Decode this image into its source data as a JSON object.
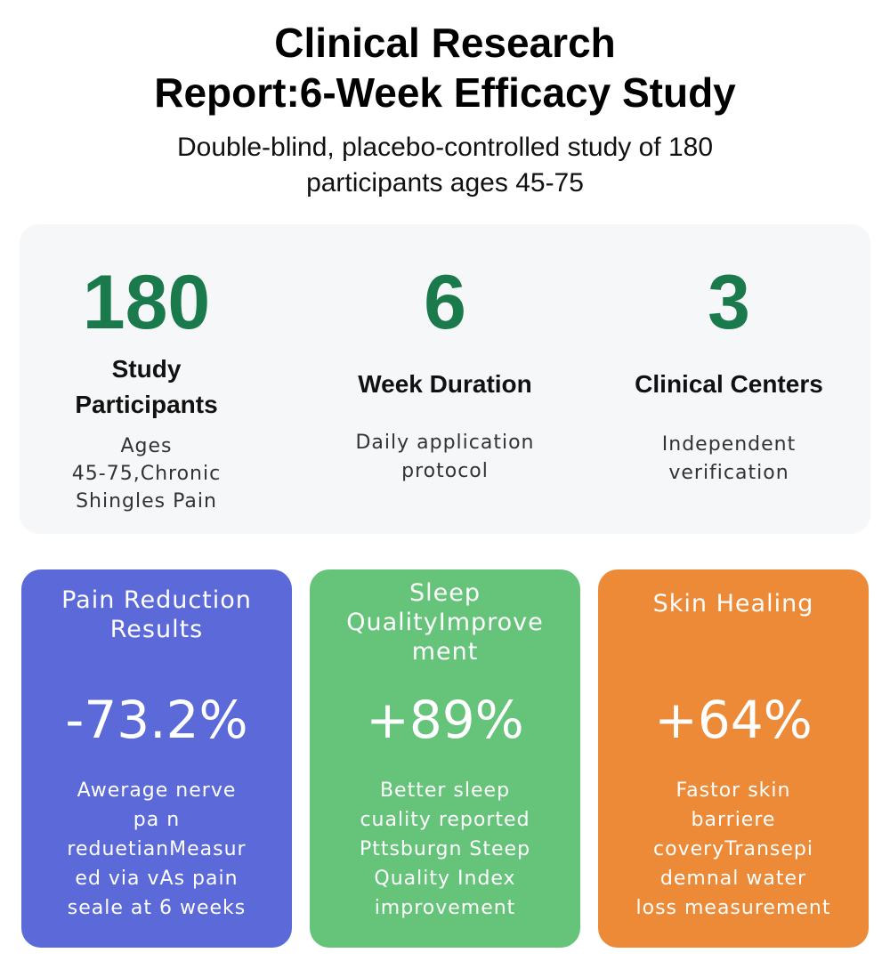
{
  "header": {
    "title_line1": "Clinical Research",
    "title_line2": "Report:6-Week Efficacy Study",
    "subtitle_line1": "Double-blind, placebo-controlled study of 180",
    "subtitle_line2": "participants ages 45-75"
  },
  "stats": [
    {
      "number": "180",
      "label_line1": "Study",
      "label_line2": "Participants",
      "desc_lines": [
        "Ages",
        "45-75,Chronic",
        "Shingles Pain"
      ]
    },
    {
      "number": "6",
      "label_line1": "Week Duration",
      "desc_lines": [
        "Daily application",
        "protocol"
      ]
    },
    {
      "number": "3",
      "label_line1": "Clinical Centers",
      "desc_lines": [
        "Independent",
        "verification"
      ]
    }
  ],
  "cards": [
    {
      "title_lines": [
        "Pain Reduction",
        "Results"
      ],
      "value": "-73.2%",
      "desc_lines": [
        "Awerage nerve",
        "pa n",
        "reduetianMeasur",
        "ed via vAs pain",
        "seale at 6 weeks"
      ],
      "color": "#5b6ad8"
    },
    {
      "title_lines": [
        "Sleep",
        "QualityImprove",
        "ment"
      ],
      "value": "+89%",
      "desc_lines": [
        "Better sleep",
        "cuality reported",
        "Pttsburgn Steep",
        "Quality Index",
        "improvement"
      ],
      "color": "#66c47a"
    },
    {
      "title_lines": [
        "Skin Healing"
      ],
      "value": "+64%",
      "desc_lines": [
        "Fastor skin",
        "barriere",
        "coveryTransepi",
        "demnal water",
        "loss measurement"
      ],
      "color": "#ec8a38"
    }
  ],
  "colors": {
    "stat_number": "#1a7a4c",
    "panel_background": "#f6f7f9"
  }
}
